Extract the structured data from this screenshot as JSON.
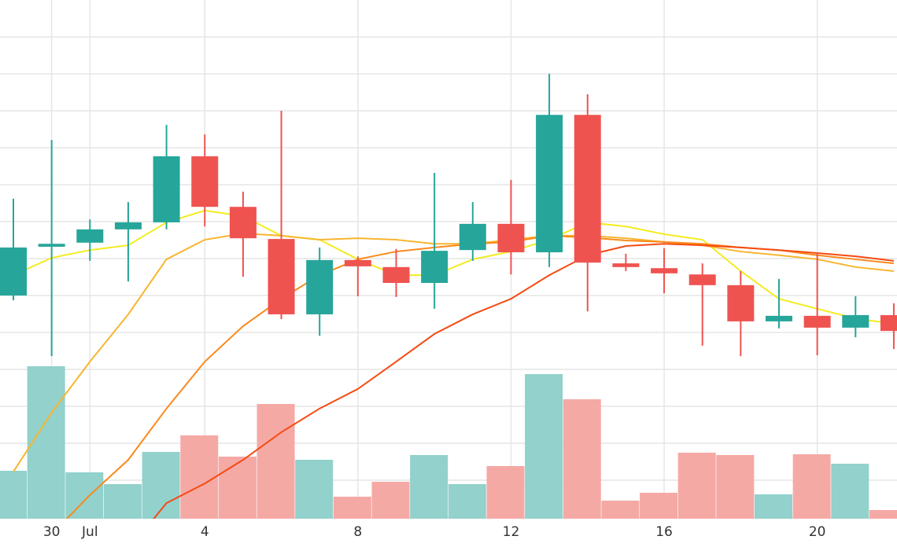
{
  "chart_data": {
    "type": "candlestick",
    "categories": [
      null,
      "30",
      "Jul",
      null,
      null,
      "4",
      null,
      null,
      null,
      "8",
      null,
      null,
      null,
      "12",
      null,
      null,
      null,
      "16",
      null,
      null,
      null,
      "20",
      null,
      null
    ],
    "open": [
      60.0,
      73.2,
      74.3,
      77.9,
      79.8,
      97.7,
      84.0,
      75.3,
      54.9,
      69.6,
      67.7,
      63.4,
      72.3,
      79.4,
      71.7,
      108.9,
      68.7,
      67.4,
      65.7,
      62.8,
      53.0,
      54.5,
      51.3,
      54.7
    ],
    "high": [
      86.2,
      102.1,
      80.6,
      85.3,
      106.2,
      103.6,
      88.1,
      110.0,
      73.0,
      70.6,
      72.6,
      93.2,
      85.3,
      91.3,
      120.0,
      114.5,
      71.3,
      72.8,
      68.7,
      66.6,
      64.5,
      71.7,
      59.8,
      57.9
    ],
    "low": [
      58.7,
      43.6,
      69.4,
      63.8,
      77.9,
      78.7,
      65.1,
      53.6,
      49.1,
      59.8,
      59.6,
      56.4,
      69.4,
      65.7,
      67.7,
      55.7,
      66.6,
      60.6,
      46.4,
      43.6,
      51.1,
      43.8,
      48.7,
      45.5
    ],
    "close": [
      73.0,
      74.0,
      77.9,
      79.8,
      97.7,
      84.0,
      75.5,
      54.9,
      69.6,
      67.9,
      63.4,
      72.1,
      79.4,
      71.7,
      108.9,
      68.9,
      67.7,
      66.0,
      62.8,
      53.0,
      54.5,
      51.3,
      54.7,
      50.4
    ],
    "volume": [
      30.5,
      97,
      29.5,
      22,
      42.5,
      53,
      39.5,
      73,
      37.5,
      14,
      23.5,
      40.5,
      22,
      33.5,
      92,
      76,
      11.5,
      16.5,
      42,
      40.5,
      15.5,
      41,
      35,
      5.5
    ],
    "up_color": "#26a69a",
    "down_color": "#ef5350",
    "volume_up_color": "#92d1cc",
    "volume_down_color": "#f5a9a5",
    "moving_averages": [
      {
        "color": "#f2ec1f",
        "values": [
          65.5,
          70.2,
          72.3,
          73.6,
          79.8,
          83.0,
          81.5,
          76.2,
          75.1,
          69.8,
          65.5,
          65.5,
          69.8,
          71.9,
          75.1,
          79.8,
          78.7,
          76.6,
          75.1,
          66.6,
          59.1,
          56.4,
          53.8,
          52.3
        ]
      },
      {
        "color": "#f8b530",
        "values": [
          12.3,
          28.3,
          42.1,
          54.9,
          69.8,
          75.1,
          76.8,
          76.2,
          75.1,
          75.5,
          75.1,
          74.0,
          74.0,
          75.1,
          76.2,
          76.2,
          75.5,
          74.5,
          73.6,
          71.9,
          70.9,
          69.8,
          67.7,
          66.6
        ]
      },
      {
        "color": "#f98a1c",
        "values": [
          null,
          -4.7,
          6.0,
          15.5,
          29.4,
          42.1,
          51.7,
          59.1,
          65.5,
          69.8,
          71.9,
          73.0,
          74.0,
          74.5,
          76.2,
          75.7,
          74.9,
          74.5,
          74.0,
          73.0,
          72.3,
          70.9,
          69.8,
          68.7
        ]
      },
      {
        "color": "#f44b12",
        "values": [
          null,
          null,
          null,
          -8.9,
          3.8,
          9.1,
          15.5,
          23.0,
          29.4,
          34.7,
          42.1,
          49.6,
          54.9,
          59.1,
          65.5,
          70.9,
          73.4,
          74.0,
          73.6,
          73.0,
          72.3,
          71.5,
          70.6,
          69.4
        ]
      }
    ],
    "ylim": [
      0,
      140
    ],
    "volume_lim": [
      0,
      330
    ],
    "grid": true
  }
}
